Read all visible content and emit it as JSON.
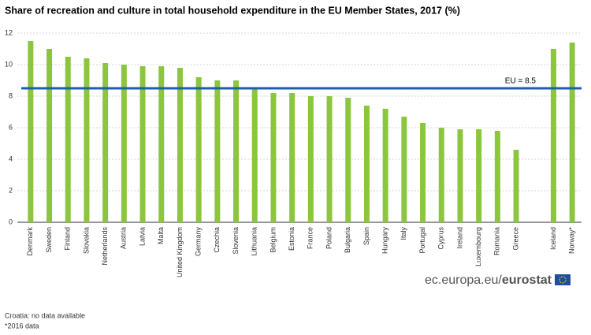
{
  "chart_data": {
    "type": "bar",
    "title": "Share of recreation and culture in total household expenditure in the EU Member States, 2017 (%)",
    "categories": [
      "Denmark",
      "Sweden",
      "Finland",
      "Slovakia",
      "Netherlands",
      "Austria",
      "Latvia",
      "Malta",
      "United Kingdom",
      "Germany",
      "Czechia",
      "Slovenia",
      "Lithuania",
      "Belgium",
      "Estonia",
      "France",
      "Poland",
      "Bulgaria",
      "Spain",
      "Hungary",
      "Italy",
      "Portugal",
      "Cyprus",
      "Ireland",
      "Luxembourg",
      "Romania",
      "Greece",
      null,
      "Iceland",
      "Norway*"
    ],
    "values": [
      11.5,
      11.0,
      10.5,
      10.4,
      10.1,
      10.0,
      9.9,
      9.9,
      9.8,
      9.2,
      9.0,
      9.0,
      8.5,
      8.2,
      8.2,
      8.0,
      8.0,
      7.9,
      7.4,
      7.2,
      6.7,
      6.3,
      6.0,
      5.9,
      5.9,
      5.8,
      4.6,
      null,
      11.0,
      11.4
    ],
    "color": "#8cc63f",
    "ylim": [
      0,
      12
    ],
    "yticks": [
      0,
      2,
      4,
      6,
      8,
      10,
      12
    ],
    "grid": true,
    "reference_line": {
      "value": 8.5,
      "label": "EU = 8.5",
      "color": "#1f5fa5"
    },
    "notes": [
      "Croatia: no data available",
      "*2016 data"
    ],
    "source": {
      "domain": "ec.europa.eu/",
      "brand": "eurostat"
    }
  }
}
